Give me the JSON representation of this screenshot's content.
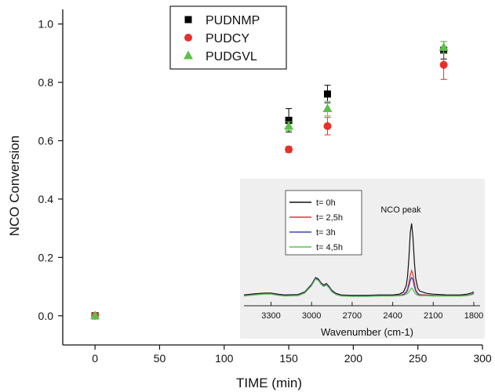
{
  "chart_data": [
    {
      "type": "scatter",
      "title": "",
      "xlabel": "TIME (min)",
      "ylabel": "NCO Conversion",
      "xlim": [
        -25,
        300
      ],
      "ylim": [
        -0.1,
        1.05
      ],
      "x_ticks": [
        0,
        50,
        100,
        150,
        200,
        250,
        300
      ],
      "x_tick_labels": [
        "0",
        "50",
        "100",
        "150",
        "200",
        "250",
        "300"
      ],
      "y_ticks": [
        0.0,
        0.2,
        0.4,
        0.6,
        0.8,
        1.0
      ],
      "y_tick_labels": [
        "0.0",
        "0.2",
        "0.4",
        "0.6",
        "0.8",
        "1.0"
      ],
      "grid": false,
      "legend_position": "top-center",
      "series": [
        {
          "name": "PUDNMP",
          "marker": "square",
          "color": "#000000",
          "points": [
            {
              "x": 0,
              "y": 0.0,
              "err": 0
            },
            {
              "x": 150,
              "y": 0.67,
              "err": 0.04
            },
            {
              "x": 180,
              "y": 0.76,
              "err": 0.03
            },
            {
              "x": 270,
              "y": 0.91,
              "err": 0.03
            }
          ]
        },
        {
          "name": "PUDCY",
          "marker": "circle",
          "color": "#e8302a",
          "points": [
            {
              "x": 0,
              "y": 0.0,
              "err": 0
            },
            {
              "x": 150,
              "y": 0.57,
              "err": 0.01
            },
            {
              "x": 180,
              "y": 0.65,
              "err": 0.03
            },
            {
              "x": 270,
              "y": 0.86,
              "err": 0.05
            }
          ]
        },
        {
          "name": "PUDGVL",
          "marker": "triangle",
          "color": "#5cc04a",
          "points": [
            {
              "x": 0,
              "y": 0.0,
              "err": 0
            },
            {
              "x": 150,
              "y": 0.65,
              "err": 0.015
            },
            {
              "x": 180,
              "y": 0.71,
              "err": 0.025
            },
            {
              "x": 270,
              "y": 0.92,
              "err": 0.02
            }
          ]
        }
      ]
    },
    {
      "type": "line",
      "title": "",
      "xlabel": "Wavenumber (cm-1)",
      "ylabel": "",
      "xlim": [
        3500,
        1800
      ],
      "x_reversed": true,
      "x_ticks": [
        3300,
        3000,
        2700,
        2400,
        2100,
        1800
      ],
      "x_tick_labels": [
        "3300",
        "3000",
        "2700",
        "2400",
        "2100",
        "1800"
      ],
      "ylim": [
        0,
        1
      ],
      "annotation": "NCO peak",
      "legend_position": "top-left",
      "x": [
        3500,
        3420,
        3350,
        3300,
        3250,
        3200,
        3100,
        3050,
        3000,
        2970,
        2950,
        2930,
        2910,
        2890,
        2870,
        2850,
        2820,
        2780,
        2700,
        2600,
        2500,
        2400,
        2350,
        2320,
        2300,
        2290,
        2280,
        2270,
        2260,
        2250,
        2240,
        2230,
        2215,
        2200,
        2150,
        2100,
        2000,
        1900,
        1850,
        1810,
        1800
      ],
      "series": [
        {
          "name": "t= 0h",
          "color": "#111111",
          "values": [
            0.06,
            0.075,
            0.085,
            0.085,
            0.07,
            0.06,
            0.065,
            0.1,
            0.2,
            0.29,
            0.27,
            0.22,
            0.19,
            0.21,
            0.17,
            0.12,
            0.08,
            0.06,
            0.055,
            0.055,
            0.06,
            0.06,
            0.07,
            0.1,
            0.18,
            0.3,
            0.55,
            0.88,
            1.0,
            0.82,
            0.5,
            0.28,
            0.15,
            0.11,
            0.08,
            0.07,
            0.06,
            0.06,
            0.07,
            0.09,
            0.1
          ]
        },
        {
          "name": "t= 2,5h",
          "color": "#e0323a",
          "values": [
            0.05,
            0.065,
            0.075,
            0.075,
            0.06,
            0.05,
            0.055,
            0.09,
            0.19,
            0.28,
            0.26,
            0.21,
            0.18,
            0.2,
            0.16,
            0.11,
            0.07,
            0.05,
            0.045,
            0.045,
            0.05,
            0.05,
            0.055,
            0.07,
            0.1,
            0.14,
            0.22,
            0.32,
            0.38,
            0.33,
            0.22,
            0.13,
            0.08,
            0.065,
            0.06,
            0.055,
            0.05,
            0.05,
            0.055,
            0.07,
            0.08
          ]
        },
        {
          "name": "t= 3h",
          "color": "#3a46b0",
          "values": [
            0.05,
            0.065,
            0.075,
            0.075,
            0.06,
            0.05,
            0.055,
            0.09,
            0.19,
            0.28,
            0.26,
            0.21,
            0.18,
            0.2,
            0.16,
            0.11,
            0.07,
            0.05,
            0.045,
            0.045,
            0.05,
            0.05,
            0.055,
            0.065,
            0.09,
            0.12,
            0.18,
            0.25,
            0.29,
            0.26,
            0.17,
            0.11,
            0.07,
            0.06,
            0.055,
            0.05,
            0.05,
            0.05,
            0.055,
            0.07,
            0.08
          ]
        },
        {
          "name": "t= 4,5h",
          "color": "#5cc04a",
          "values": [
            0.045,
            0.06,
            0.07,
            0.07,
            0.055,
            0.045,
            0.05,
            0.085,
            0.18,
            0.27,
            0.25,
            0.2,
            0.17,
            0.19,
            0.15,
            0.1,
            0.065,
            0.045,
            0.04,
            0.04,
            0.045,
            0.045,
            0.05,
            0.055,
            0.07,
            0.08,
            0.1,
            0.13,
            0.15,
            0.13,
            0.1,
            0.07,
            0.055,
            0.05,
            0.05,
            0.045,
            0.045,
            0.045,
            0.05,
            0.065,
            0.075
          ]
        }
      ]
    }
  ]
}
